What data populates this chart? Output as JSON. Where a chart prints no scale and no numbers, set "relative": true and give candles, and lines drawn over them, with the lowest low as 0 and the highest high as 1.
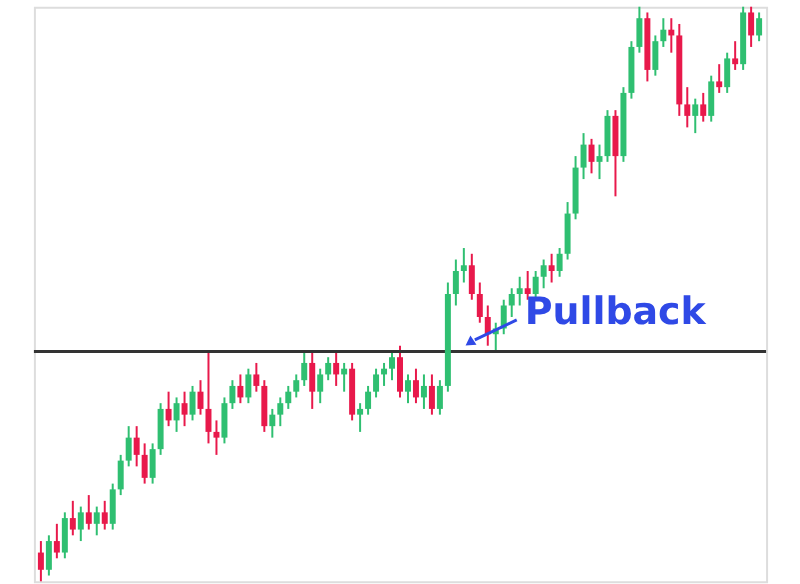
{
  "chart_data": {
    "type": "candlestick",
    "relative": true,
    "categories": [
      null,
      null,
      null,
      null,
      null,
      null,
      null,
      null,
      null,
      null,
      null,
      null,
      null,
      null,
      null,
      null,
      null,
      null,
      null,
      null,
      null,
      null,
      null,
      null,
      null,
      null,
      null,
      null,
      null,
      null,
      null,
      null,
      null,
      null,
      null,
      null,
      null,
      null,
      null,
      null,
      null,
      null,
      null,
      null,
      null,
      null,
      null,
      null,
      null,
      null,
      null,
      null,
      null,
      null,
      null,
      null,
      null,
      null,
      null,
      null,
      null,
      null,
      null,
      null,
      null,
      null,
      null,
      null,
      null,
      null,
      null,
      null,
      null,
      null,
      null,
      null,
      null,
      null,
      null,
      null,
      null,
      null,
      null,
      null,
      null,
      null,
      null,
      null,
      null,
      null,
      null
    ],
    "ohlc": [
      [
        0.05,
        0.07,
        0.0,
        0.02
      ],
      [
        0.02,
        0.08,
        0.01,
        0.07
      ],
      [
        0.07,
        0.1,
        0.04,
        0.05
      ],
      [
        0.05,
        0.12,
        0.04,
        0.11
      ],
      [
        0.11,
        0.14,
        0.08,
        0.09
      ],
      [
        0.09,
        0.13,
        0.07,
        0.12
      ],
      [
        0.12,
        0.15,
        0.09,
        0.1
      ],
      [
        0.1,
        0.13,
        0.08,
        0.12
      ],
      [
        0.12,
        0.14,
        0.09,
        0.1
      ],
      [
        0.1,
        0.17,
        0.09,
        0.16
      ],
      [
        0.16,
        0.22,
        0.15,
        0.21
      ],
      [
        0.21,
        0.27,
        0.2,
        0.25
      ],
      [
        0.25,
        0.27,
        0.2,
        0.22
      ],
      [
        0.22,
        0.24,
        0.17,
        0.18
      ],
      [
        0.18,
        0.24,
        0.17,
        0.23
      ],
      [
        0.23,
        0.31,
        0.22,
        0.3
      ],
      [
        0.3,
        0.33,
        0.27,
        0.28
      ],
      [
        0.28,
        0.32,
        0.26,
        0.31
      ],
      [
        0.31,
        0.33,
        0.27,
        0.29
      ],
      [
        0.29,
        0.34,
        0.28,
        0.33
      ],
      [
        0.33,
        0.35,
        0.29,
        0.3
      ],
      [
        0.3,
        0.4,
        0.24,
        0.26
      ],
      [
        0.26,
        0.28,
        0.22,
        0.25
      ],
      [
        0.25,
        0.32,
        0.24,
        0.31
      ],
      [
        0.31,
        0.35,
        0.3,
        0.34
      ],
      [
        0.34,
        0.36,
        0.31,
        0.32
      ],
      [
        0.32,
        0.37,
        0.31,
        0.36
      ],
      [
        0.36,
        0.38,
        0.33,
        0.34
      ],
      [
        0.34,
        0.35,
        0.26,
        0.27
      ],
      [
        0.27,
        0.3,
        0.25,
        0.29
      ],
      [
        0.29,
        0.32,
        0.27,
        0.31
      ],
      [
        0.31,
        0.34,
        0.3,
        0.33
      ],
      [
        0.33,
        0.36,
        0.32,
        0.35
      ],
      [
        0.35,
        0.4,
        0.34,
        0.38
      ],
      [
        0.38,
        0.4,
        0.3,
        0.33
      ],
      [
        0.33,
        0.37,
        0.31,
        0.36
      ],
      [
        0.36,
        0.39,
        0.35,
        0.38
      ],
      [
        0.38,
        0.4,
        0.34,
        0.36
      ],
      [
        0.36,
        0.38,
        0.33,
        0.37
      ],
      [
        0.37,
        0.38,
        0.28,
        0.29
      ],
      [
        0.29,
        0.31,
        0.26,
        0.3
      ],
      [
        0.3,
        0.34,
        0.29,
        0.33
      ],
      [
        0.33,
        0.37,
        0.32,
        0.36
      ],
      [
        0.36,
        0.38,
        0.34,
        0.37
      ],
      [
        0.37,
        0.4,
        0.35,
        0.39
      ],
      [
        0.39,
        0.41,
        0.32,
        0.33
      ],
      [
        0.33,
        0.36,
        0.31,
        0.35
      ],
      [
        0.35,
        0.37,
        0.31,
        0.32
      ],
      [
        0.32,
        0.36,
        0.3,
        0.34
      ],
      [
        0.34,
        0.36,
        0.29,
        0.3
      ],
      [
        0.3,
        0.35,
        0.29,
        0.34
      ],
      [
        0.34,
        0.52,
        0.33,
        0.5
      ],
      [
        0.5,
        0.56,
        0.48,
        0.54
      ],
      [
        0.54,
        0.58,
        0.52,
        0.55
      ],
      [
        0.55,
        0.57,
        0.49,
        0.5
      ],
      [
        0.5,
        0.52,
        0.45,
        0.46
      ],
      [
        0.46,
        0.48,
        0.41,
        0.43
      ],
      [
        0.43,
        0.45,
        0.4,
        0.44
      ],
      [
        0.44,
        0.49,
        0.43,
        0.48
      ],
      [
        0.48,
        0.51,
        0.46,
        0.5
      ],
      [
        0.5,
        0.53,
        0.48,
        0.51
      ],
      [
        0.51,
        0.54,
        0.49,
        0.5
      ],
      [
        0.5,
        0.54,
        0.49,
        0.53
      ],
      [
        0.53,
        0.56,
        0.51,
        0.55
      ],
      [
        0.55,
        0.57,
        0.52,
        0.54
      ],
      [
        0.54,
        0.58,
        0.53,
        0.57
      ],
      [
        0.57,
        0.66,
        0.56,
        0.64
      ],
      [
        0.64,
        0.74,
        0.63,
        0.72
      ],
      [
        0.72,
        0.78,
        0.7,
        0.76
      ],
      [
        0.76,
        0.77,
        0.71,
        0.73
      ],
      [
        0.73,
        0.76,
        0.7,
        0.74
      ],
      [
        0.74,
        0.82,
        0.73,
        0.81
      ],
      [
        0.81,
        0.82,
        0.67,
        0.74
      ],
      [
        0.74,
        0.86,
        0.73,
        0.85
      ],
      [
        0.85,
        0.94,
        0.84,
        0.93
      ],
      [
        0.93,
        1.0,
        0.92,
        0.98
      ],
      [
        0.98,
        0.99,
        0.87,
        0.89
      ],
      [
        0.89,
        0.95,
        0.88,
        0.94
      ],
      [
        0.94,
        0.98,
        0.93,
        0.96
      ],
      [
        0.96,
        0.98,
        0.92,
        0.95
      ],
      [
        0.95,
        0.97,
        0.81,
        0.83
      ],
      [
        0.83,
        0.86,
        0.79,
        0.81
      ],
      [
        0.81,
        0.84,
        0.78,
        0.83
      ],
      [
        0.83,
        0.85,
        0.8,
        0.81
      ],
      [
        0.81,
        0.88,
        0.8,
        0.87
      ],
      [
        0.87,
        0.9,
        0.85,
        0.86
      ],
      [
        0.86,
        0.92,
        0.85,
        0.91
      ],
      [
        0.91,
        0.94,
        0.89,
        0.9
      ],
      [
        0.9,
        1.0,
        0.89,
        0.99
      ],
      [
        0.99,
        1.0,
        0.93,
        0.95
      ],
      [
        0.95,
        0.99,
        0.94,
        0.98
      ]
    ],
    "colors": [
      "#e8194b",
      "#2fbf71",
      "#e8194b",
      "#2fbf71",
      "#e8194b",
      "#2fbf71",
      "#e8194b",
      "#2fbf71",
      "#e8194b",
      "#2fbf71",
      "#2fbf71",
      "#2fbf71",
      "#e8194b",
      "#e8194b",
      "#2fbf71",
      "#2fbf71",
      "#e8194b",
      "#2fbf71",
      "#e8194b",
      "#2fbf71",
      "#e8194b",
      "#e8194b",
      "#e8194b",
      "#2fbf71",
      "#2fbf71",
      "#e8194b",
      "#2fbf71",
      "#e8194b",
      "#e8194b",
      "#2fbf71",
      "#2fbf71",
      "#2fbf71",
      "#2fbf71",
      "#2fbf71",
      "#e8194b",
      "#2fbf71",
      "#2fbf71",
      "#e8194b",
      "#2fbf71",
      "#e8194b",
      "#2fbf71",
      "#2fbf71",
      "#2fbf71",
      "#2fbf71",
      "#2fbf71",
      "#e8194b",
      "#2fbf71",
      "#e8194b",
      "#2fbf71",
      "#e8194b",
      "#2fbf71",
      "#2fbf71",
      "#2fbf71",
      "#2fbf71",
      "#e8194b",
      "#e8194b",
      "#e8194b",
      "#2fbf71",
      "#2fbf71",
      "#2fbf71",
      "#2fbf71",
      "#e8194b",
      "#2fbf71",
      "#2fbf71",
      "#e8194b",
      "#2fbf71",
      "#2fbf71",
      "#2fbf71",
      "#2fbf71",
      "#e8194b",
      "#2fbf71",
      "#2fbf71",
      "#e8194b",
      "#2fbf71",
      "#2fbf71",
      "#2fbf71",
      "#e8194b",
      "#2fbf71",
      "#2fbf71",
      "#e8194b",
      "#e8194b",
      "#e8194b",
      "#2fbf71",
      "#e8194b",
      "#2fbf71",
      "#e8194b",
      "#2fbf71",
      "#e8194b",
      "#2fbf71",
      "#e8194b",
      "#2fbf71"
    ],
    "ref_lines": [
      {
        "axis": "y",
        "value": 0.4,
        "color": "#333333"
      }
    ],
    "annotations": [
      "Pullback"
    ]
  }
}
